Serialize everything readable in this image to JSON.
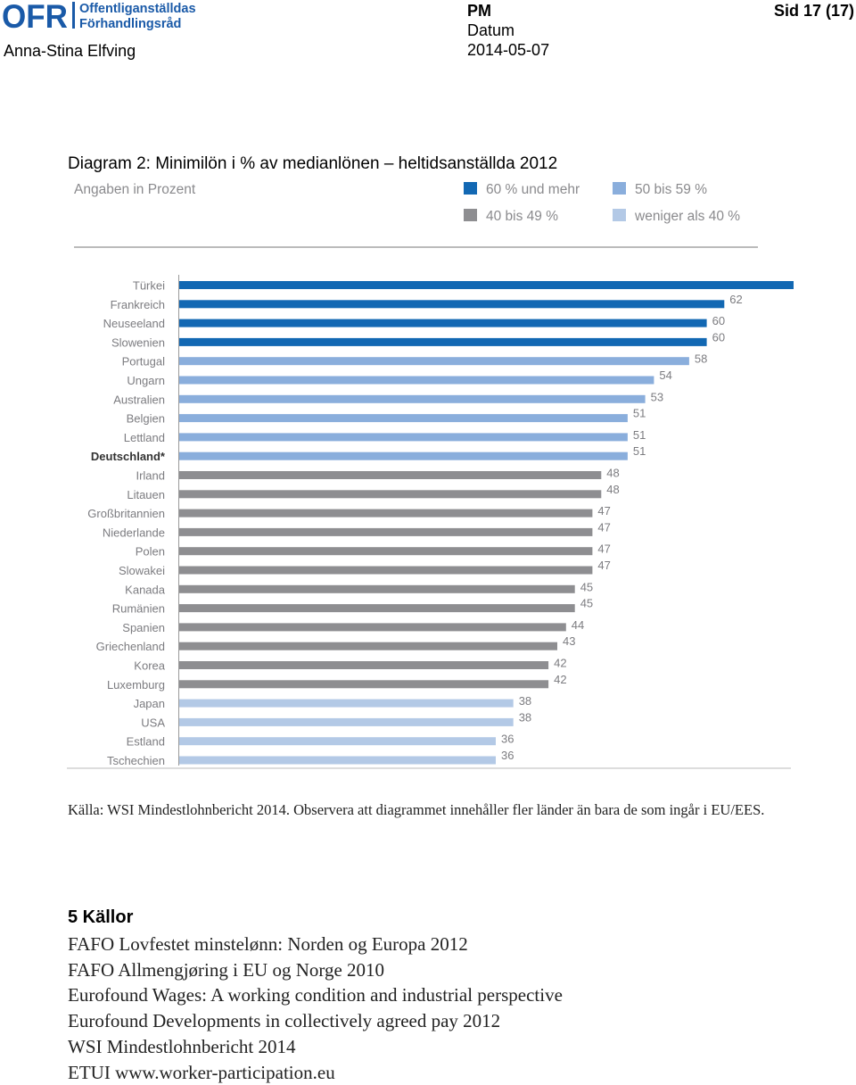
{
  "header": {
    "logo": {
      "mark": "OFR",
      "line1": "Offentliganställdas",
      "line2": "Förhandlingsråd",
      "color": "#1a5aa8"
    },
    "author": "Anna-Stina Elfving",
    "doc_type": "PM",
    "datum_label": "Datum",
    "date": "2014-05-07",
    "page": "Sid 17 (17)"
  },
  "diagram_title": "Diagram 2: Minimilön i % av medianlönen – heltidsanställda 2012",
  "chart_data": {
    "type": "bar",
    "orientation": "horizontal",
    "subtitle": "Angaben in Prozent",
    "legend": [
      {
        "name": "60 % und mehr",
        "color": "#1268b3"
      },
      {
        "name": "50 bis 59 %",
        "color": "#8aaedc"
      },
      {
        "name": "40 bis 49 %",
        "color": "#8e8e91"
      },
      {
        "name": "weniger als 40 %",
        "color": "#b3c9e6"
      }
    ],
    "categories": [
      "Türkei",
      "Frankreich",
      "Neuseeland",
      "Slowenien",
      "Portugal",
      "Ungarn",
      "Australien",
      "Belgien",
      "Lettland",
      "Deutschland*",
      "Irland",
      "Litauen",
      "Großbritannien",
      "Niederlande",
      "Polen",
      "Slowakei",
      "Kanada",
      "Rumänien",
      "Spanien",
      "Griechenland",
      "Korea",
      "Luxemburg",
      "Japan",
      "USA",
      "Estland",
      "Tschechien"
    ],
    "values": [
      73,
      62,
      60,
      60,
      58,
      54,
      53,
      51,
      51,
      51,
      48,
      48,
      47,
      47,
      47,
      47,
      45,
      45,
      44,
      43,
      42,
      42,
      38,
      38,
      36,
      36
    ],
    "bold_category": "Deutschland*",
    "grid": false
  },
  "source_note": "Källa: WSI Mindestlohnbericht 2014. Observera att diagrammet innehåller fler länder än bara de som ingår i EU/EES.",
  "references": {
    "heading": "5 Källor",
    "items": [
      "FAFO Lovfestet minstelønn: Norden og Europa 2012",
      "FAFO Allmengjøring i EU og Norge 2010",
      "Eurofound Wages: A working condition and industrial perspective",
      "Eurofound Developments in collectively agreed pay 2012",
      "WSI Mindestlohnbericht 2014",
      "ETUI www.worker-participation.eu"
    ]
  }
}
